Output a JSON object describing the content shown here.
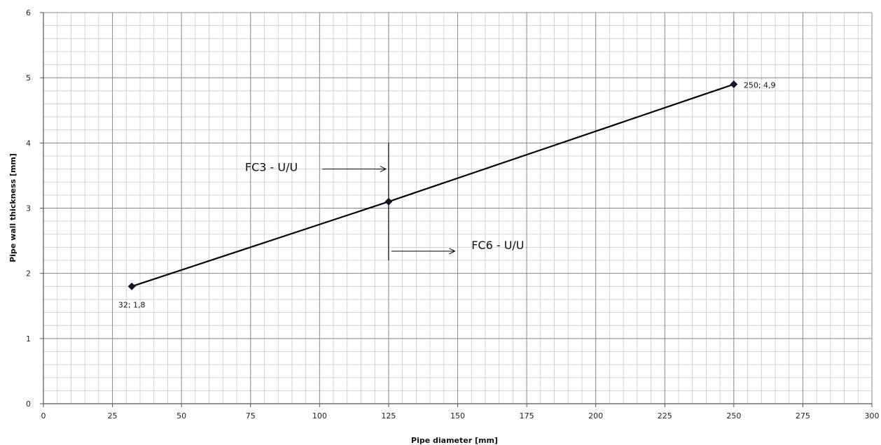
{
  "chart_data": {
    "type": "line",
    "xlabel": "Pipe diameter [mm]",
    "ylabel": "Pipe wall thickness  [mm]",
    "xlim": [
      0,
      300
    ],
    "ylim": [
      0,
      6
    ],
    "x_major_ticks": [
      0,
      25,
      50,
      75,
      100,
      125,
      150,
      175,
      200,
      225,
      250,
      275,
      300
    ],
    "y_major_ticks": [
      0,
      1,
      2,
      3,
      4,
      5,
      6
    ],
    "x_minor_step": 5,
    "y_minor_step": 0.2,
    "grid": true,
    "series": [
      {
        "points": [
          {
            "x": 32,
            "y": 1.8,
            "label": "32; 1,8"
          },
          {
            "x": 125,
            "y": 3.1,
            "label": ""
          },
          {
            "x": 250,
            "y": 4.9,
            "label": "250; 4,9"
          }
        ],
        "color": "#000000",
        "marker": "diamond",
        "marker_color": "#0d1b2e"
      }
    ],
    "annotations": {
      "vertical_line": {
        "x": 125,
        "y_from": 2.2,
        "y_to": 4.0
      },
      "fc3": {
        "text": "FC3 - U/U",
        "text_x": 73,
        "text_y": 3.57,
        "arrow_from_x": 101,
        "arrow_to_x": 124,
        "arrow_y": 3.6
      },
      "fc6": {
        "text": "FC6 - U/U",
        "text_x": 155,
        "text_y": 2.37,
        "arrow_from_x": 126,
        "arrow_to_x": 149,
        "arrow_y": 2.34
      }
    }
  }
}
